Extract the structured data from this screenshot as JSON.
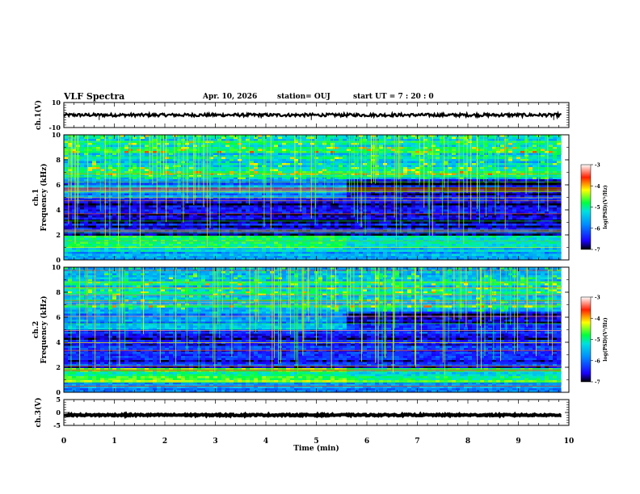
{
  "header": {
    "title": "VLF Spectra",
    "date": "Apr. 10, 2026",
    "station": "station= OUJ",
    "start": "start  UT  =   7 : 20 : 0"
  },
  "chart_data": {
    "type": "heatmap",
    "xlabel": "Time  (min)",
    "xlim": [
      0,
      10
    ],
    "x_ticks": [
      "0",
      "1",
      "2",
      "3",
      "4",
      "5",
      "6",
      "7",
      "8",
      "9",
      "10"
    ],
    "panels": [
      {
        "name": "ch1-waveform",
        "type": "line",
        "ylabel": "ch.1(V)",
        "ylim": [
          -10,
          10
        ],
        "y_ticks": [
          "10",
          "-10"
        ],
        "description_values": {
          "baseline": 0,
          "noise_amplitude": 1.2,
          "spikes_at_min": [
            0.7,
            4.9,
            9.7
          ]
        }
      },
      {
        "name": "ch1-spectrogram",
        "type": "heatmap",
        "ylabel": "ch.1\nFrequency (kHz)",
        "ylim": [
          0,
          10
        ],
        "y_ticks": [
          "0",
          "2",
          "4",
          "6",
          "8",
          "10"
        ],
        "bands": [
          {
            "f_low": 0.0,
            "f_high": 0.8,
            "level": -5.6
          },
          {
            "f_low": 0.8,
            "f_high": 1.9,
            "level": -5.0
          },
          {
            "f_low": 1.9,
            "f_high": 5.0,
            "level": -6.6
          },
          {
            "f_low": 5.0,
            "f_high": 6.5,
            "level": -5.8
          },
          {
            "f_low": 6.5,
            "f_high": 10.0,
            "level": -5.2
          }
        ],
        "colorbar": {
          "label": "log(PSD)(V²/Hz)",
          "range": [
            -7,
            -3
          ],
          "ticks": [
            "-3",
            "-4",
            "-5",
            "-6",
            "-7"
          ]
        }
      },
      {
        "name": "ch2-spectrogram",
        "type": "heatmap",
        "ylabel": "ch.2\nFrequency (kHz)",
        "ylim": [
          0,
          10
        ],
        "y_ticks": [
          "0",
          "2",
          "4",
          "6",
          "8",
          "10"
        ],
        "bands": [
          {
            "f_low": 0.0,
            "f_high": 0.8,
            "level": -5.6
          },
          {
            "f_low": 0.8,
            "f_high": 1.9,
            "level": -4.8
          },
          {
            "f_low": 1.9,
            "f_high": 5.0,
            "level": -6.5
          },
          {
            "f_low": 5.0,
            "f_high": 6.5,
            "level": -5.6
          },
          {
            "f_low": 6.5,
            "f_high": 10.0,
            "level": -5.3
          }
        ],
        "colorbar": {
          "label": "log(PSD)(V²/Hz)",
          "range": [
            -7,
            -3
          ],
          "ticks": [
            "-3",
            "-4",
            "-5",
            "-6",
            "-7"
          ]
        }
      },
      {
        "name": "ch3-waveform",
        "type": "line",
        "ylabel": "ch.3(V)",
        "ylim": [
          -5,
          5
        ],
        "y_ticks": [
          "5",
          "0",
          "-5"
        ],
        "description_values": {
          "baseline": -1,
          "noise_amplitude": 0.3
        }
      }
    ]
  }
}
